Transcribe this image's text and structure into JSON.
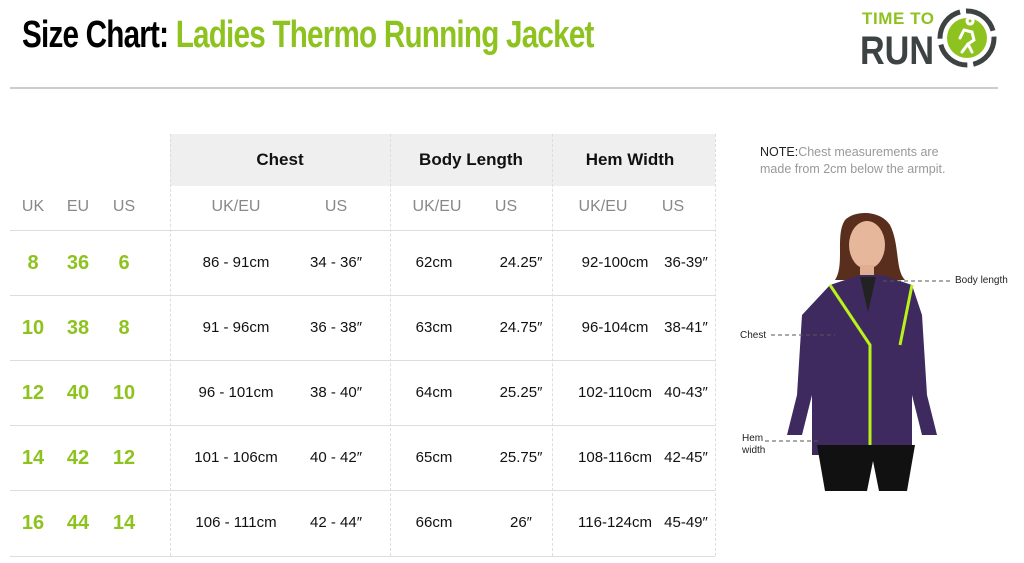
{
  "title": {
    "prefix": "Size Chart:",
    "product": "Ladies Thermo Running Jacket"
  },
  "logo": {
    "line1": "TIME TO",
    "line2": "RUN"
  },
  "colors": {
    "accent": "#8dc21f",
    "logo_dark": "#3d4242"
  },
  "table": {
    "groups": [
      "Chest",
      "Body Length",
      "Hem Width"
    ],
    "subheaders": [
      "UK",
      "EU",
      "US",
      "UK/EU",
      "US",
      "UK/EU",
      "US",
      "UK/EU",
      "US"
    ],
    "rows": [
      {
        "uk": "8",
        "eu": "36",
        "us": "6",
        "chest_cm": "86 - 91cm",
        "chest_in": "34 - 36″",
        "len_cm": "62cm",
        "len_in": "24.25″",
        "hem_cm": "92-100cm",
        "hem_in": "36-39″"
      },
      {
        "uk": "10",
        "eu": "38",
        "us": "8",
        "chest_cm": "91 - 96cm",
        "chest_in": "36 - 38″",
        "len_cm": "63cm",
        "len_in": "24.75″",
        "hem_cm": "96-104cm",
        "hem_in": "38-41″"
      },
      {
        "uk": "12",
        "eu": "40",
        "us": "10",
        "chest_cm": "96 - 101cm",
        "chest_in": "38 - 40″",
        "len_cm": "64cm",
        "len_in": "25.25″",
        "hem_cm": "102-110cm",
        "hem_in": "40-43″"
      },
      {
        "uk": "14",
        "eu": "42",
        "us": "12",
        "chest_cm": "101 - 106cm",
        "chest_in": "40 - 42″",
        "len_cm": "65cm",
        "len_in": "25.75″",
        "hem_cm": "108-116cm",
        "hem_in": "42-45″"
      },
      {
        "uk": "16",
        "eu": "44",
        "us": "14",
        "chest_cm": "106 - 111cm",
        "chest_in": "42 - 44″",
        "len_cm": "66cm",
        "len_in": "26″",
        "hem_cm": "116-124cm",
        "hem_in": "45-49″"
      }
    ]
  },
  "note": {
    "label": "NOTE:",
    "text": "Chest measurements are made from 2cm below the armpit."
  },
  "figure": {
    "body_length": "Body length",
    "chest": "Chest",
    "hem_width_1": "Hem",
    "hem_width_2": "width"
  }
}
